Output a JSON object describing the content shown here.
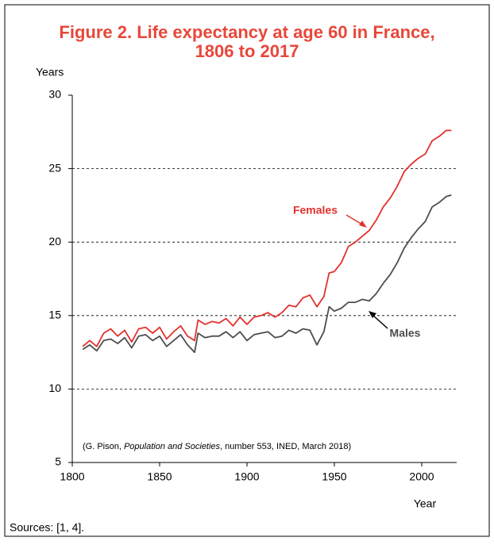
{
  "chart_data": {
    "type": "line",
    "title": [
      "Figure 2. Life expectancy at age 60 in France,",
      "1806 to 2017"
    ],
    "y_label": "Years",
    "x_label": "Year",
    "note": [
      "(G. Pison, ",
      "Population and Societies",
      ", number 553, INED, March 2018)"
    ],
    "source": "Sources: [1, 4].",
    "x": [
      1806,
      1810,
      1814,
      1818,
      1822,
      1826,
      1830,
      1834,
      1838,
      1842,
      1846,
      1850,
      1854,
      1858,
      1862,
      1866,
      1870,
      1872,
      1876,
      1880,
      1884,
      1888,
      1892,
      1896,
      1900,
      1904,
      1908,
      1912,
      1916,
      1920,
      1924,
      1928,
      1932,
      1936,
      1940,
      1944,
      1947,
      1950,
      1954,
      1958,
      1962,
      1966,
      1970,
      1974,
      1978,
      1982,
      1986,
      1990,
      1994,
      1998,
      2002,
      2006,
      2010,
      2014,
      2017
    ],
    "series": [
      {
        "name": "Females",
        "color": "#e2312d",
        "values": [
          12.9,
          13.3,
          12.9,
          13.8,
          14.1,
          13.6,
          14.0,
          13.2,
          14.1,
          14.2,
          13.8,
          14.2,
          13.4,
          13.9,
          14.3,
          13.6,
          13.3,
          14.7,
          14.4,
          14.6,
          14.5,
          14.8,
          14.3,
          14.9,
          14.4,
          14.9,
          15.0,
          15.2,
          14.9,
          15.2,
          15.7,
          15.6,
          16.2,
          16.4,
          15.6,
          16.3,
          17.9,
          18.0,
          18.6,
          19.7,
          20.0,
          20.4,
          20.8,
          21.5,
          22.4,
          23.0,
          23.8,
          24.8,
          25.3,
          25.7,
          26.0,
          26.9,
          27.2,
          27.6,
          27.6
        ]
      },
      {
        "name": "Males",
        "color": "#4d4d4d",
        "values": [
          12.7,
          13.0,
          12.6,
          13.3,
          13.4,
          13.1,
          13.5,
          12.8,
          13.6,
          13.7,
          13.3,
          13.6,
          12.9,
          13.3,
          13.7,
          13.0,
          12.5,
          13.8,
          13.5,
          13.6,
          13.6,
          13.9,
          13.5,
          13.9,
          13.3,
          13.7,
          13.8,
          13.9,
          13.5,
          13.6,
          14.0,
          13.8,
          14.1,
          14.0,
          13.0,
          13.9,
          15.6,
          15.3,
          15.5,
          15.9,
          15.9,
          16.1,
          16.0,
          16.5,
          17.2,
          17.8,
          18.6,
          19.6,
          20.3,
          20.9,
          21.4,
          22.4,
          22.7,
          23.1,
          23.2
        ]
      }
    ],
    "xlim": [
      1800,
      2020
    ],
    "xticks": [
      1800,
      1850,
      1900,
      1950,
      2000
    ],
    "ylim": [
      5,
      30
    ],
    "yticks": [
      5,
      10,
      15,
      20,
      25,
      30
    ],
    "grid": true
  }
}
